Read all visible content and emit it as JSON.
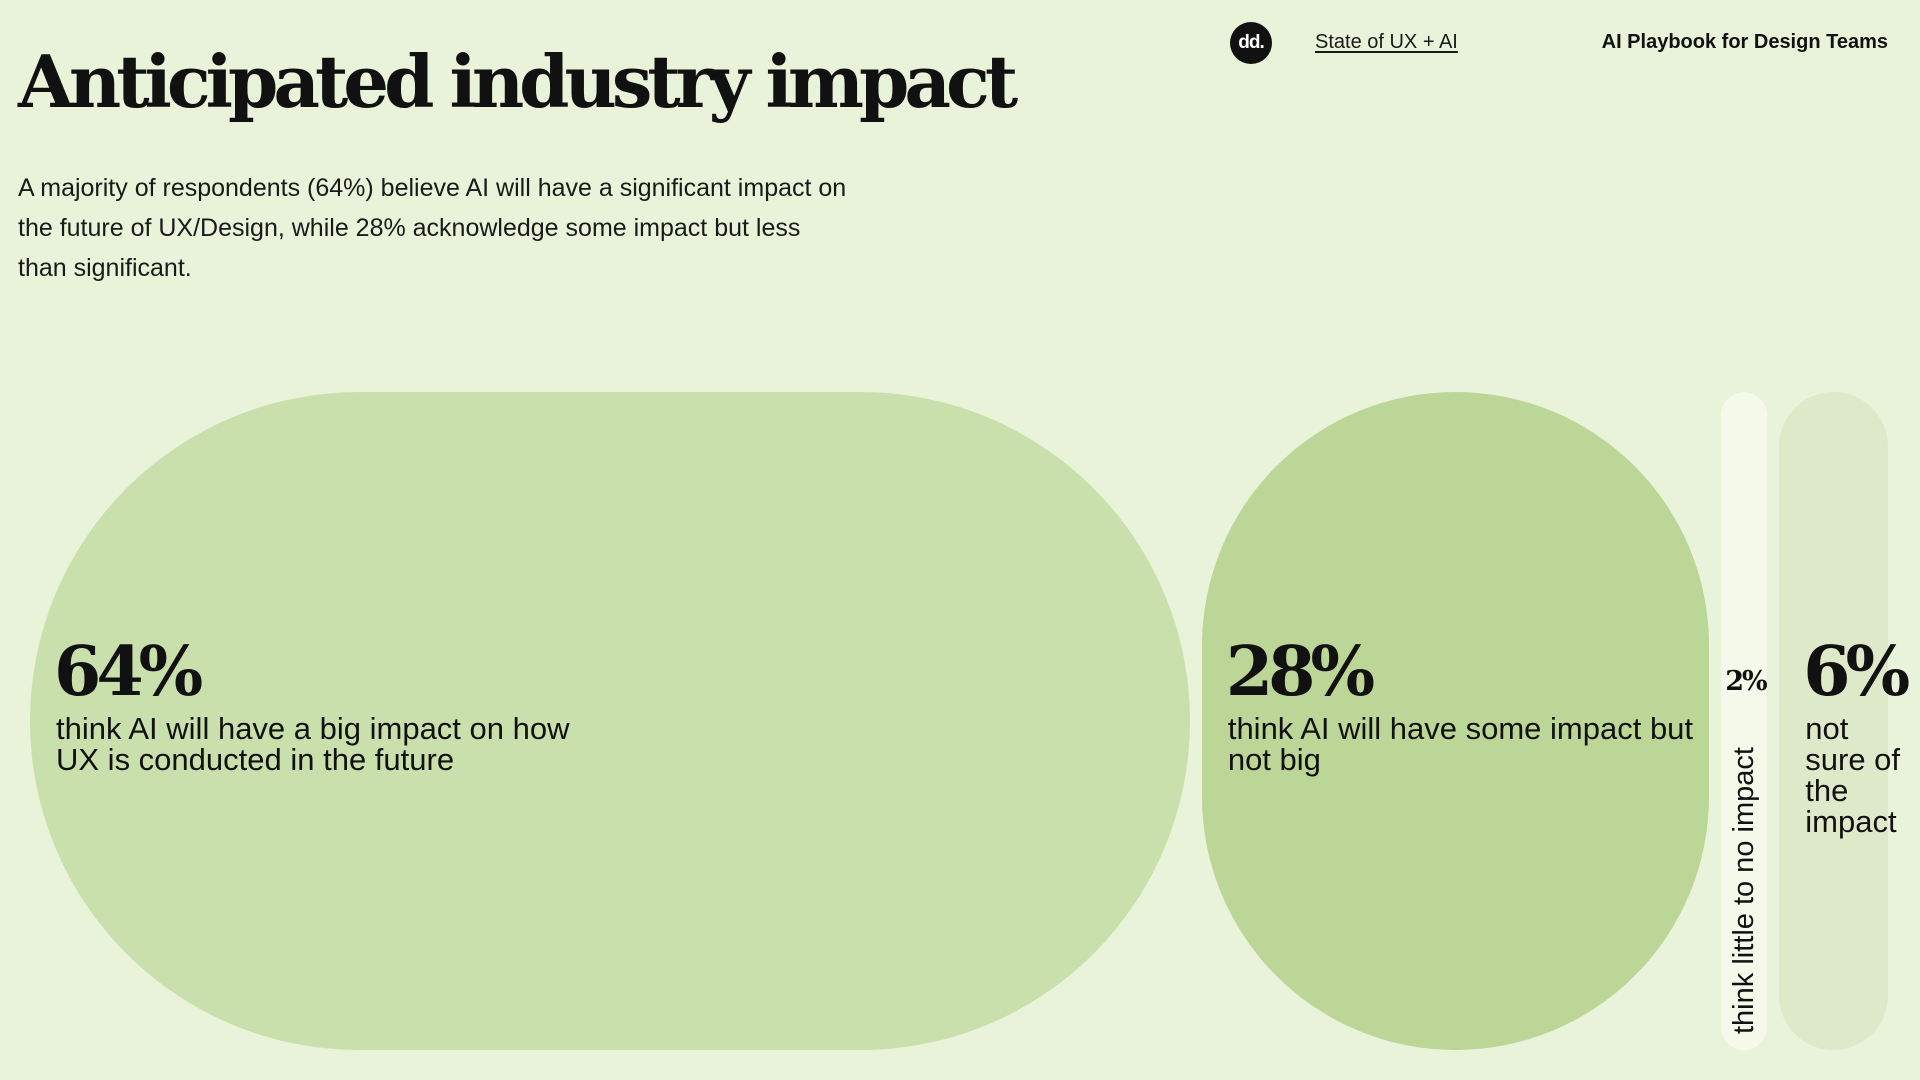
{
  "header": {
    "logo_text": "dd.",
    "link_label": "State of UX + AI",
    "brand": "AI Playbook for Design Teams"
  },
  "page": {
    "title": "Anticipated industry impact",
    "description": "A majority of respondents (64%) believe AI will have a significant impact on the future of UX/Design, while 28% acknowledge some impact but less than significant."
  },
  "chart_data": {
    "type": "bar",
    "orientation": "horizontal-proportional",
    "title": "",
    "xlabel": "",
    "ylabel": "",
    "categories": [
      "think AI will have a big impact on how UX is conducted in the future",
      "think AI will have some impact but not big",
      "think little to no impact",
      "not sure of the impact"
    ],
    "values": [
      64,
      28,
      2,
      6
    ],
    "value_labels": [
      "64%",
      "28%",
      "2%",
      "6%"
    ],
    "unit": "%",
    "colors": [
      "#c9e0ac",
      "#bcd697",
      "#f4f9ea",
      "#dde9c9"
    ],
    "grid": false,
    "legend": "none"
  }
}
